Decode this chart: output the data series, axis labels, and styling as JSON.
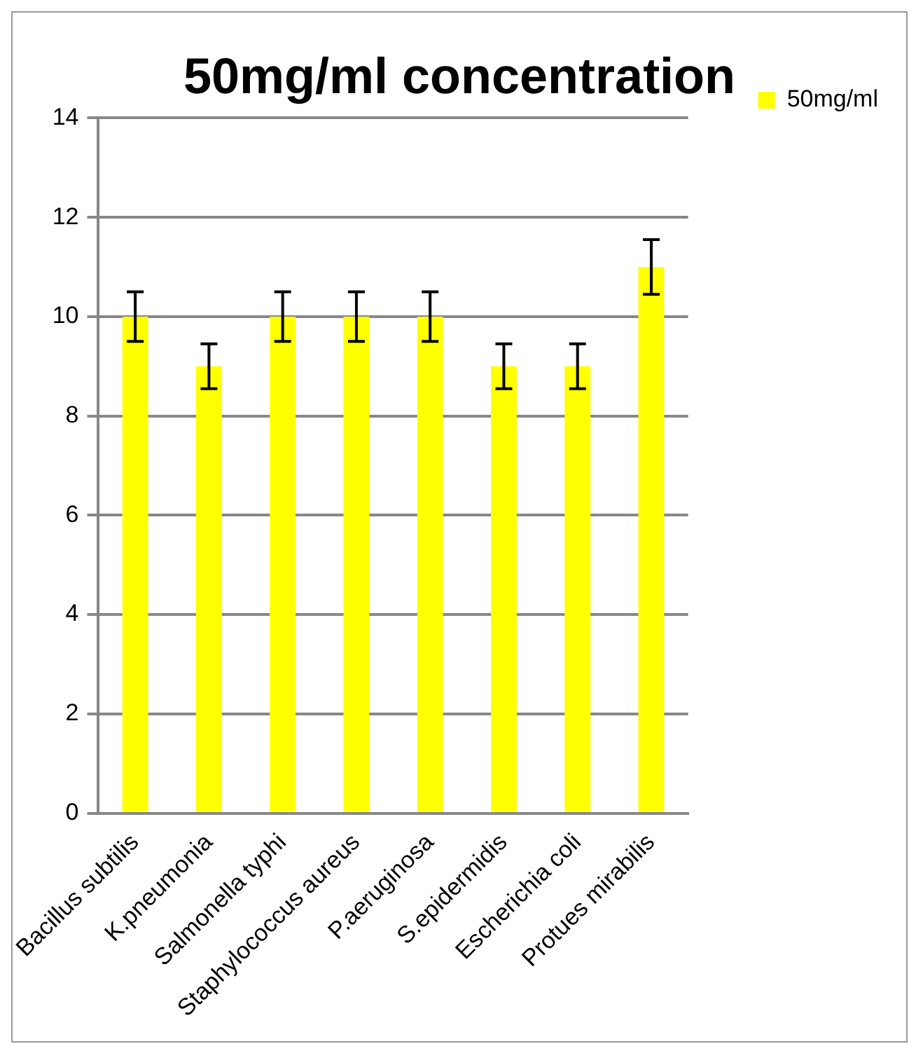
{
  "chart_data": {
    "type": "bar",
    "title": "50mg/ml concentration",
    "categories": [
      "Bacillus subtilis",
      "K.pneumonia",
      "Salmonella typhi",
      "Staphylococcus aureus",
      "P.aeruginosa",
      "S.epidermidis",
      "Escherichia coli",
      "Protues mirabilis"
    ],
    "series": [
      {
        "name": "50mg/ml",
        "color": "#ffff00",
        "values": [
          10,
          9,
          10,
          10,
          10,
          9,
          9,
          11
        ],
        "errors": [
          0.5,
          0.45,
          0.5,
          0.5,
          0.5,
          0.45,
          0.45,
          0.55
        ]
      }
    ],
    "ylim": [
      0,
      14
    ],
    "yticks": [
      0,
      2,
      4,
      6,
      8,
      10,
      12,
      14
    ],
    "grid": "y",
    "legend": "top right"
  }
}
